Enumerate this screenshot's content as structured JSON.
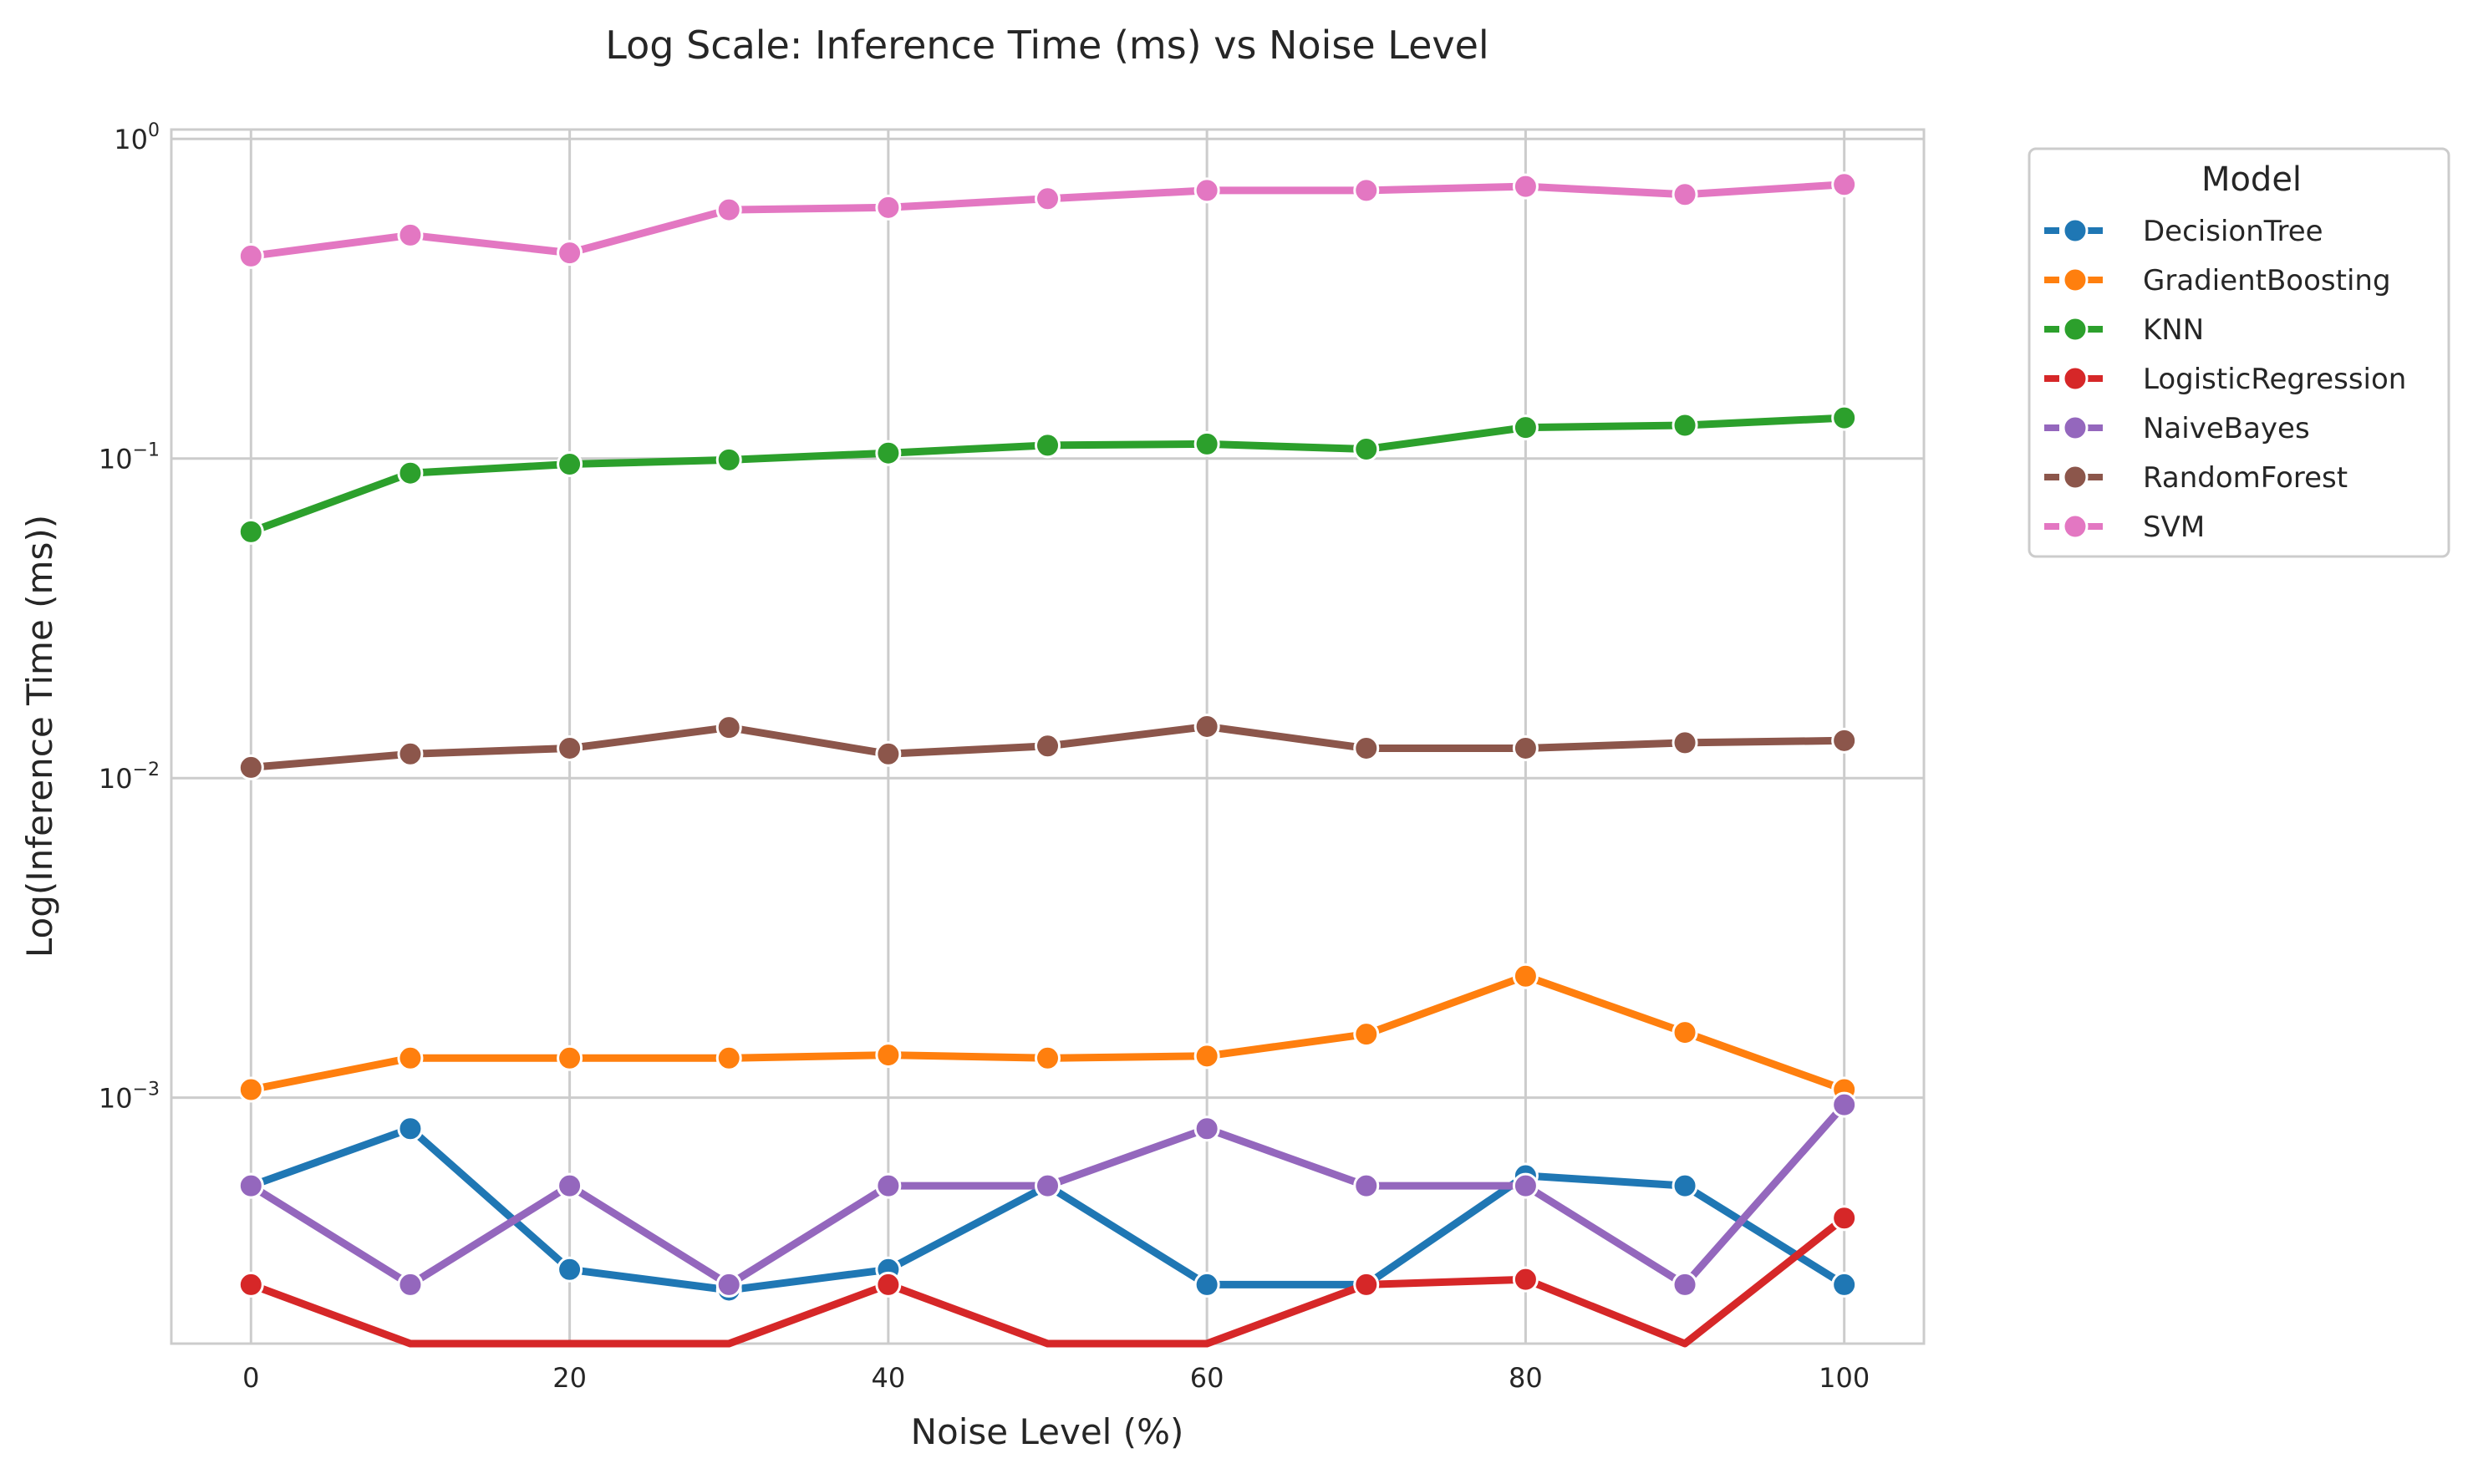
{
  "chart_data": {
    "type": "line",
    "title": "Log Scale: Inference Time (ms) vs Noise Level",
    "xlabel": "Noise Level (%)",
    "ylabel": "Log(Inference Time (ms))",
    "yscale": "log",
    "xlim": [
      -5,
      105
    ],
    "ylim": [
      0.00017,
      1.07
    ],
    "grid": true,
    "x_ticks": [
      0,
      20,
      40,
      60,
      80,
      100
    ],
    "y_ticks": [
      {
        "value": 0.001,
        "base": "10",
        "exp": "−3"
      },
      {
        "value": 0.01,
        "base": "10",
        "exp": "−2"
      },
      {
        "value": 0.1,
        "base": "10",
        "exp": "−1"
      },
      {
        "value": 1,
        "base": "10",
        "exp": "0"
      }
    ],
    "legend": {
      "title": "Model",
      "placement": "outside-right-top"
    },
    "x": [
      0,
      10,
      20,
      30,
      40,
      50,
      60,
      70,
      80,
      90,
      100
    ],
    "series": [
      {
        "name": "DecisionTree",
        "color": "#1f77b4",
        "values": [
          0.00053,
          0.0008,
          0.00029,
          0.00025,
          0.00029,
          0.00053,
          0.00026,
          0.00026,
          0.00057,
          0.00053,
          0.00026
        ]
      },
      {
        "name": "GradientBoosting",
        "color": "#ff7f0e",
        "values": [
          0.00106,
          0.00133,
          0.00133,
          0.00133,
          0.00136,
          0.00133,
          0.00135,
          0.00158,
          0.0024,
          0.0016,
          0.00106
        ]
      },
      {
        "name": "KNN",
        "color": "#2ca02c",
        "values": [
          0.059,
          0.09,
          0.096,
          0.099,
          0.104,
          0.11,
          0.111,
          0.107,
          0.125,
          0.127,
          0.134
        ]
      },
      {
        "name": "LogisticRegression",
        "color": "#d62728",
        "values": [
          0.00026,
          0,
          0,
          0,
          0.00026,
          0,
          0,
          0.00026,
          0.00027,
          0,
          0.00042
        ]
      },
      {
        "name": "NaiveBayes",
        "color": "#9467bd",
        "values": [
          0.00053,
          0.00026,
          0.00053,
          0.00026,
          0.00053,
          0.00053,
          0.0008,
          0.00053,
          0.00053,
          0.00026,
          0.00095
        ]
      },
      {
        "name": "RandomForest",
        "color": "#8c564b",
        "values": [
          0.0108,
          0.0119,
          0.0124,
          0.0144,
          0.0119,
          0.0126,
          0.0145,
          0.0124,
          0.0124,
          0.0129,
          0.0131
        ]
      },
      {
        "name": "SVM",
        "color": "#e377c2",
        "values": [
          0.43,
          0.5,
          0.44,
          0.6,
          0.61,
          0.65,
          0.69,
          0.69,
          0.71,
          0.67,
          0.72
        ]
      }
    ]
  }
}
